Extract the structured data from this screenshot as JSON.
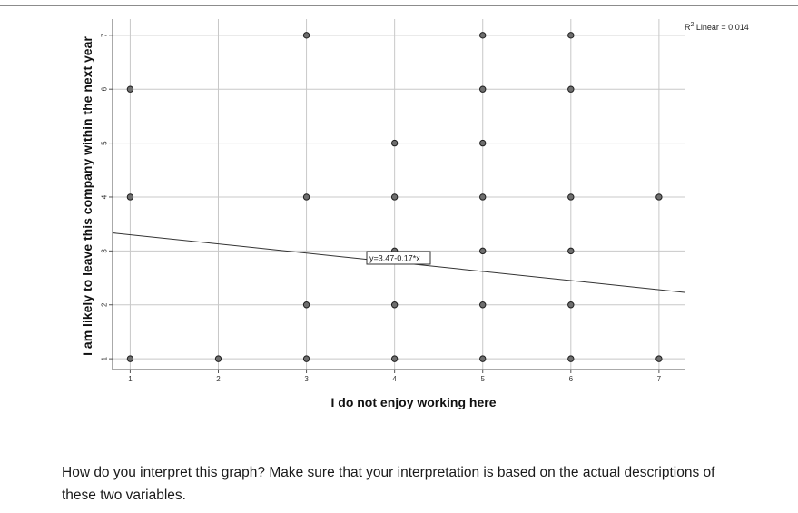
{
  "chart_data": {
    "type": "scatter",
    "xlabel": "I do not enjoy working here",
    "ylabel": "I am likely to leave this company within the next year",
    "xlim": [
      0.8,
      7.3
    ],
    "ylim": [
      0.8,
      7.3
    ],
    "x_ticks": [
      1,
      2,
      3,
      4,
      5,
      6,
      7
    ],
    "y_ticks": [
      1,
      2,
      3,
      4,
      5,
      6,
      7
    ],
    "grid": true,
    "points": [
      {
        "x": 1,
        "y": 1
      },
      {
        "x": 1,
        "y": 4
      },
      {
        "x": 1,
        "y": 6
      },
      {
        "x": 2,
        "y": 1
      },
      {
        "x": 3,
        "y": 1
      },
      {
        "x": 3,
        "y": 2
      },
      {
        "x": 3,
        "y": 4
      },
      {
        "x": 3,
        "y": 7
      },
      {
        "x": 4,
        "y": 1
      },
      {
        "x": 4,
        "y": 2
      },
      {
        "x": 4,
        "y": 3
      },
      {
        "x": 4,
        "y": 4
      },
      {
        "x": 4,
        "y": 5
      },
      {
        "x": 5,
        "y": 1
      },
      {
        "x": 5,
        "y": 2
      },
      {
        "x": 5,
        "y": 3
      },
      {
        "x": 5,
        "y": 4
      },
      {
        "x": 5,
        "y": 5
      },
      {
        "x": 5,
        "y": 6
      },
      {
        "x": 5,
        "y": 7
      },
      {
        "x": 6,
        "y": 1
      },
      {
        "x": 6,
        "y": 2
      },
      {
        "x": 6,
        "y": 3
      },
      {
        "x": 6,
        "y": 4
      },
      {
        "x": 6,
        "y": 6
      },
      {
        "x": 6,
        "y": 7
      },
      {
        "x": 7,
        "y": 1
      },
      {
        "x": 7,
        "y": 4
      }
    ],
    "fit_line": {
      "intercept": 3.47,
      "slope": -0.17
    },
    "equation_label": "y=3.47-0.17*x",
    "r2_label_prefix": "R",
    "r2_label_sup": "2",
    "r2_label_rest": " Linear = 0.014"
  },
  "question": {
    "part1": "How do you ",
    "underline1": "interpret",
    "part2": " this graph? Make sure that your interpretation is based on the actual ",
    "underline2": "descriptions",
    "part3": " of these two variables."
  }
}
